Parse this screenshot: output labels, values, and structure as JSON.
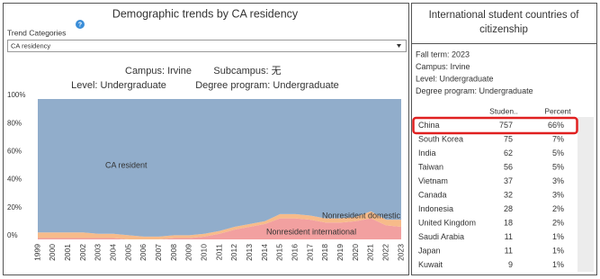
{
  "chart_data": {
    "type": "stacked_area",
    "title": "Demographic trends by CA residency",
    "x": [
      1999,
      2000,
      2001,
      2002,
      2003,
      2004,
      2005,
      2006,
      2007,
      2008,
      2009,
      2010,
      2011,
      2012,
      2013,
      2014,
      2015,
      2016,
      2017,
      2018,
      2019,
      2020,
      2021,
      2022,
      2023
    ],
    "xlim": [
      1999,
      2023
    ],
    "xticks": [
      1999,
      2000,
      2001,
      2002,
      2003,
      2004,
      2005,
      2006,
      2007,
      2008,
      2009,
      2010,
      2011,
      2012,
      2013,
      2014,
      2015,
      2016,
      2017,
      2018,
      2019,
      2020,
      2021,
      2022,
      2023
    ],
    "ylim": [
      0,
      100
    ],
    "yticks": [
      {
        "value": 0,
        "label": "0%"
      },
      {
        "value": 20,
        "label": "20%"
      },
      {
        "value": 40,
        "label": "40%"
      },
      {
        "value": 60,
        "label": "60%"
      },
      {
        "value": 80,
        "label": "80%"
      },
      {
        "value": 100,
        "label": "100%"
      }
    ],
    "series": [
      {
        "name": "Nonresident international",
        "color": "#f2a0a0",
        "values": [
          1,
          1,
          1,
          1,
          1,
          1,
          0,
          0,
          0,
          1,
          1,
          2,
          4,
          7,
          9,
          11,
          15,
          15,
          14,
          12,
          12,
          13,
          15,
          10,
          9
        ]
      },
      {
        "name": "Nonresident domestic",
        "color": "#f7bb8a",
        "values": [
          4,
          4,
          4,
          4,
          3,
          3,
          3,
          2,
          2,
          2,
          2,
          2,
          2,
          2,
          2,
          2,
          3,
          3,
          3,
          3,
          3,
          3,
          5,
          4,
          5
        ]
      },
      {
        "name": "CA resident",
        "color": "#91adcb",
        "values": [
          95,
          95,
          95,
          95,
          96,
          96,
          97,
          98,
          98,
          97,
          97,
          96,
          94,
          91,
          89,
          87,
          82,
          82,
          83,
          85,
          85,
          84,
          80,
          86,
          86
        ]
      }
    ]
  },
  "help_icon": "?",
  "control": {
    "label": "Trend Categories",
    "selected": "CA residency"
  },
  "filters": {
    "campus": "Campus: Irvine",
    "subcampus": "Subcampus: 无",
    "level": "Level: Undergraduate",
    "degree": "Degree program: Undergraduate"
  },
  "panel": {
    "title_lines": [
      "International student countries of",
      "citizenship"
    ],
    "info": [
      "Fall term: 2023",
      "Campus: Irvine",
      "Level: Undergraduate",
      "Degree program: Undergraduate"
    ]
  },
  "table": {
    "headers": [
      "Studen..",
      "Percent"
    ],
    "rows": [
      [
        "China",
        "757",
        "66%"
      ],
      [
        "South Korea",
        "75",
        "7%"
      ],
      [
        "India",
        "62",
        "5%"
      ],
      [
        "Taiwan",
        "56",
        "5%"
      ],
      [
        "Vietnam",
        "37",
        "3%"
      ],
      [
        "Canada",
        "32",
        "3%"
      ],
      [
        "Indonesia",
        "28",
        "2%"
      ],
      [
        "United Kingdom",
        "18",
        "2%"
      ],
      [
        "Saudi Arabia",
        "11",
        "1%"
      ],
      [
        "Japan",
        "11",
        "1%"
      ],
      [
        "Kuwait",
        "9",
        "1%"
      ]
    ]
  }
}
